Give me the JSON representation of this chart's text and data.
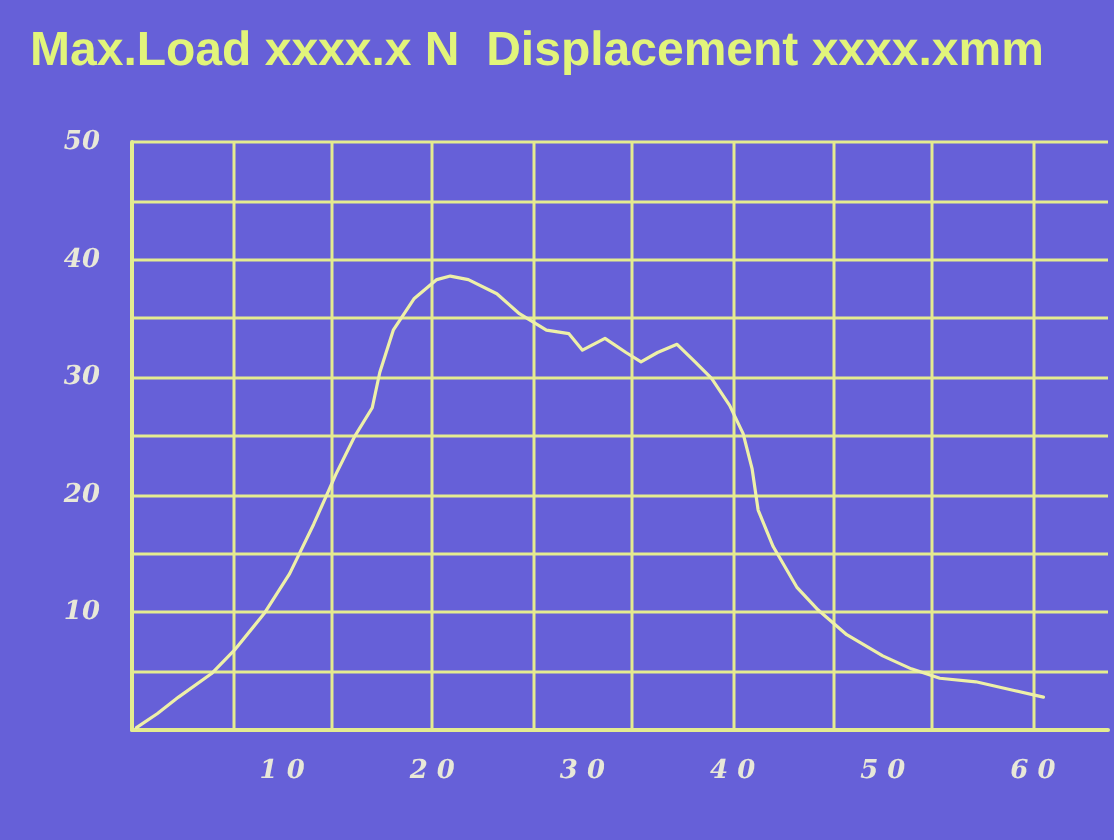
{
  "chart_data": {
    "type": "line",
    "title": "Max.Load xxxx.x N  Displacement xxxx.xmm",
    "x": [
      0.3,
      1.7,
      3.1,
      5.3,
      6.9,
      8.8,
      10.5,
      12.1,
      13.6,
      14.8,
      16,
      16.5,
      17.4,
      18.8,
      20.3,
      21.2,
      22.4,
      24.3,
      25.8,
      27.6,
      29.1,
      30,
      31.5,
      32.9,
      33.9,
      35,
      36.3,
      37.5,
      38.6,
      39.8,
      40.7,
      41.3,
      41.7,
      42.7,
      44.3,
      45.7,
      47.6,
      50,
      51.9,
      53.8,
      56.2,
      58.6,
      60.7
    ],
    "series": [
      {
        "color": "#eef0a8",
        "values": [
          0.2,
          1.4,
          2.8,
          4.8,
          6.9,
          9.9,
          13.3,
          17.5,
          21.8,
          24.9,
          27.4,
          30.4,
          34,
          36.7,
          38.3,
          38.6,
          38.3,
          37.1,
          35.4,
          34,
          33.7,
          32.3,
          33.3,
          32.1,
          31.3,
          32.1,
          32.8,
          31.3,
          29.9,
          27.6,
          25.2,
          22.2,
          18.7,
          15.6,
          12.1,
          10.2,
          8.1,
          6.3,
          5.2,
          4.4,
          4.1,
          3.4,
          2.8
        ]
      }
    ],
    "xlim": [
      0,
      65
    ],
    "xticks": [
      {
        "value": 6.7,
        "label": null
      },
      10,
      {
        "value": 13.3,
        "label": null
      },
      {
        "value": 20,
        "label": null
      },
      20,
      {
        "value": 26.7,
        "label": null
      },
      30,
      {
        "value": 33.3,
        "label": null
      },
      {
        "value": 40,
        "label": null
      },
      40,
      {
        "value": 46.7,
        "label": null
      },
      50,
      {
        "value": 53.3,
        "label": null
      },
      {
        "value": 60,
        "label": null
      },
      60
    ],
    "ylim": [
      0,
      50
    ],
    "yticks": [
      {
        "value": 0,
        "label": null
      },
      {
        "value": 5,
        "label": null
      },
      10,
      {
        "value": 15,
        "label": null
      },
      20,
      {
        "value": 25,
        "label": null
      },
      30,
      {
        "value": 35,
        "label": null
      },
      40,
      {
        "value": 45,
        "label": null
      },
      50
    ],
    "grid": true,
    "marker": "none",
    "line_style": "solid"
  }
}
